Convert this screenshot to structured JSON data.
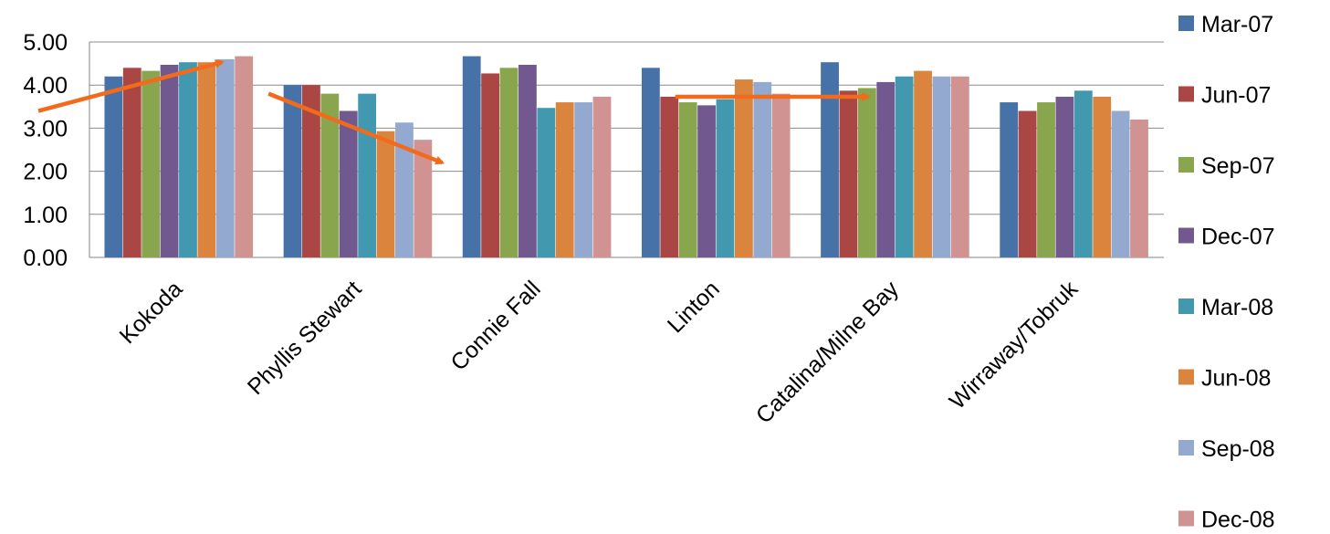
{
  "chart_data": {
    "type": "bar",
    "categories": [
      "Kokoda",
      "Phyllis Stewart",
      "Connie Fall",
      "Linton",
      "Catalina/Milne Bay",
      "Wirraway/Tobruk"
    ],
    "series": [
      {
        "name": "Mar-07",
        "color": "#4672A8",
        "values": [
          4.2,
          4.0,
          4.67,
          4.4,
          4.53,
          3.6
        ]
      },
      {
        "name": "Jun-07",
        "color": "#AA4643",
        "values": [
          4.4,
          4.0,
          4.27,
          3.73,
          3.87,
          3.4
        ]
      },
      {
        "name": "Sep-07",
        "color": "#89A54E",
        "values": [
          4.33,
          3.8,
          4.4,
          3.6,
          3.93,
          3.6
        ]
      },
      {
        "name": "Dec-07",
        "color": "#71588F",
        "values": [
          4.47,
          3.4,
          4.47,
          3.53,
          4.07,
          3.73
        ]
      },
      {
        "name": "Mar-08",
        "color": "#4198AF",
        "values": [
          4.53,
          3.8,
          3.47,
          3.67,
          4.2,
          3.87
        ]
      },
      {
        "name": "Jun-08",
        "color": "#DB843D",
        "values": [
          4.53,
          2.93,
          3.6,
          4.13,
          4.33,
          3.73
        ]
      },
      {
        "name": "Sep-08",
        "color": "#93A9CF",
        "values": [
          4.6,
          3.13,
          3.6,
          4.07,
          4.2,
          3.4
        ]
      },
      {
        "name": "Dec-08",
        "color": "#D19392",
        "values": [
          4.67,
          2.73,
          3.73,
          3.8,
          4.2,
          3.2
        ]
      }
    ],
    "yticks": [
      "0.00",
      "1.00",
      "2.00",
      "3.00",
      "4.00",
      "5.00"
    ],
    "ylim": [
      0,
      5
    ],
    "grid": true,
    "legend_position": "right",
    "title": "",
    "xlabel": "",
    "ylabel": "",
    "annotations": {
      "arrow_color": "#F26A1B",
      "arrows": [
        {
          "category": "Kokoda",
          "from": 3.4,
          "to": 4.53
        },
        {
          "category": "Phyllis Stewart",
          "from": 3.8,
          "to": 2.2
        },
        {
          "category": "Linton",
          "from": 3.73,
          "to": 3.73
        }
      ]
    }
  }
}
